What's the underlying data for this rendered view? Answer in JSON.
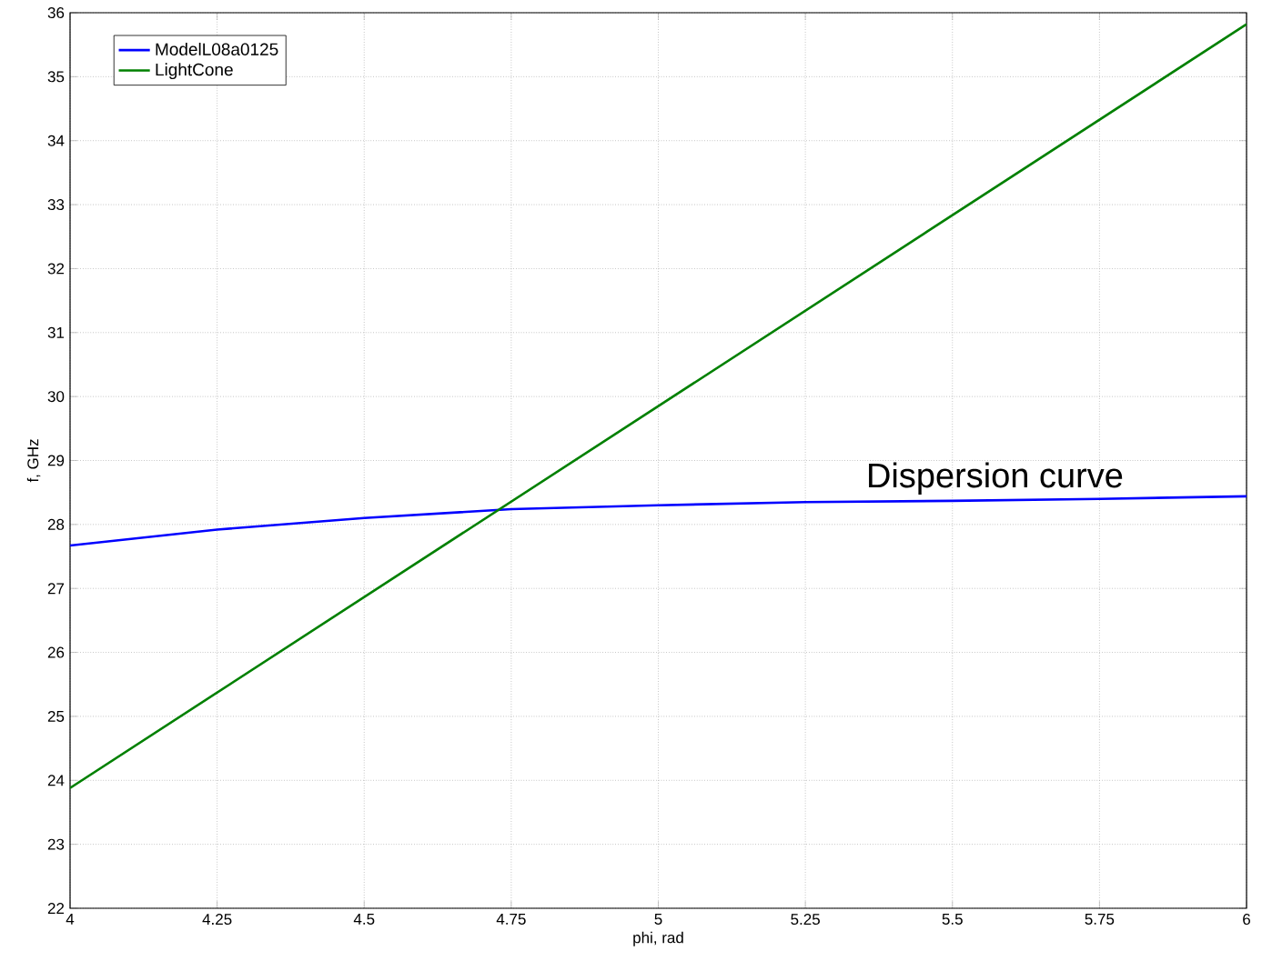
{
  "chart_data": {
    "type": "line",
    "xlabel": "phi, rad",
    "ylabel": "f, GHz",
    "annotations": [
      "Dispersion curve"
    ],
    "xlim": [
      4,
      6
    ],
    "ylim": [
      22,
      36
    ],
    "xticks": [
      4,
      4.25,
      4.5,
      4.75,
      5,
      5.25,
      5.5,
      5.75,
      6
    ],
    "yticks": [
      22,
      23,
      24,
      25,
      26,
      27,
      28,
      29,
      30,
      31,
      32,
      33,
      34,
      35,
      36
    ],
    "grid": true,
    "legend": "top left",
    "marker": "none",
    "line_style": "solid",
    "series": [
      {
        "name": "ModelL08a0125",
        "color": "#0000ff",
        "x": [
          4,
          4.25,
          4.5,
          4.75,
          5,
          5.25,
          5.5,
          5.75,
          6
        ],
        "values": [
          27.67,
          27.92,
          28.1,
          28.24,
          28.3,
          28.35,
          28.37,
          28.4,
          28.44
        ]
      },
      {
        "name": "LightCone",
        "color": "#008000",
        "x": [
          4,
          6
        ],
        "values": [
          23.88,
          35.82
        ]
      }
    ]
  }
}
